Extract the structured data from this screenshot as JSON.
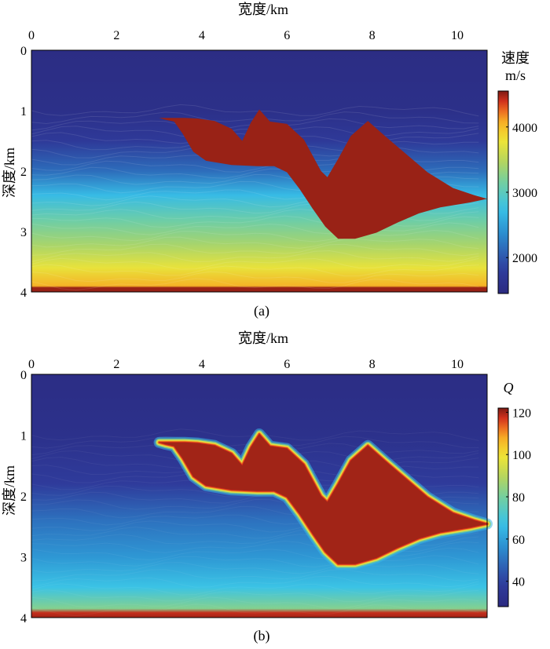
{
  "chart_data": [
    {
      "type": "heatmap",
      "panel_label": "(a)",
      "title": "宽度/km",
      "xlabel": "宽度/km",
      "ylabel": "深度/km",
      "xlim": [
        0,
        10.7
      ],
      "ylim": [
        0,
        4
      ],
      "x_ticks": [
        0,
        2,
        4,
        6,
        8,
        10
      ],
      "y_ticks": [
        0,
        1,
        2,
        3,
        4
      ],
      "colorbar": {
        "label_line1": "速度",
        "label_line2": "m/s",
        "range": [
          1450,
          4550
        ],
        "ticks": [
          2000,
          3000,
          4000
        ]
      },
      "layers": [
        {
          "depth": 0.0,
          "value": 1500
        },
        {
          "depth": 1.0,
          "value": 1560
        },
        {
          "depth": 1.5,
          "value": 1750
        },
        {
          "depth": 2.0,
          "value": 2150
        },
        {
          "depth": 2.4,
          "value": 2700
        },
        {
          "depth": 2.8,
          "value": 3100
        },
        {
          "depth": 3.2,
          "value": 3400
        },
        {
          "depth": 3.6,
          "value": 3750
        },
        {
          "depth": 3.9,
          "value": 4050
        },
        {
          "depth": 3.93,
          "value": 4500
        },
        {
          "depth": 4.0,
          "value": 4500
        }
      ],
      "salt_body": {
        "value": 4500,
        "outline": [
          [
            3.0,
            1.12
          ],
          [
            3.3,
            1.12
          ],
          [
            3.6,
            1.12
          ],
          [
            3.9,
            1.13
          ],
          [
            4.3,
            1.17
          ],
          [
            4.7,
            1.3
          ],
          [
            4.95,
            1.5
          ],
          [
            5.15,
            1.2
          ],
          [
            5.35,
            0.98
          ],
          [
            5.6,
            1.18
          ],
          [
            6.0,
            1.22
          ],
          [
            6.4,
            1.48
          ],
          [
            6.8,
            2.0
          ],
          [
            6.95,
            2.1
          ],
          [
            7.2,
            1.8
          ],
          [
            7.5,
            1.42
          ],
          [
            7.9,
            1.17
          ],
          [
            8.3,
            1.42
          ],
          [
            8.8,
            1.72
          ],
          [
            9.3,
            2.02
          ],
          [
            9.9,
            2.28
          ],
          [
            10.4,
            2.4
          ],
          [
            10.7,
            2.46
          ],
          [
            10.3,
            2.52
          ],
          [
            9.6,
            2.6
          ],
          [
            9.1,
            2.7
          ],
          [
            8.6,
            2.85
          ],
          [
            8.1,
            3.02
          ],
          [
            7.6,
            3.12
          ],
          [
            7.2,
            3.12
          ],
          [
            6.9,
            2.92
          ],
          [
            6.6,
            2.62
          ],
          [
            6.3,
            2.3
          ],
          [
            6.0,
            2.02
          ],
          [
            5.7,
            1.92
          ],
          [
            5.3,
            1.92
          ],
          [
            4.7,
            1.9
          ],
          [
            4.1,
            1.83
          ],
          [
            3.8,
            1.68
          ],
          [
            3.55,
            1.38
          ],
          [
            3.35,
            1.18
          ],
          [
            3.15,
            1.15
          ]
        ]
      }
    },
    {
      "type": "heatmap",
      "panel_label": "(b)",
      "title": "宽度/km",
      "xlabel": "宽度/km",
      "ylabel": "深度/km",
      "xlim": [
        0,
        10.7
      ],
      "ylim": [
        0,
        4
      ],
      "x_ticks": [
        0,
        2,
        4,
        6,
        8,
        10
      ],
      "y_ticks": [
        0,
        1,
        2,
        3,
        4
      ],
      "colorbar": {
        "label_line1": "Q",
        "label_line2": "",
        "range": [
          28,
          122
        ],
        "ticks": [
          40,
          60,
          80,
          100,
          120
        ]
      },
      "layers": [
        {
          "depth": 0.0,
          "value": 30
        },
        {
          "depth": 1.0,
          "value": 32
        },
        {
          "depth": 1.8,
          "value": 38
        },
        {
          "depth": 2.4,
          "value": 50
        },
        {
          "depth": 3.0,
          "value": 58
        },
        {
          "depth": 3.5,
          "value": 68
        },
        {
          "depth": 3.85,
          "value": 82
        },
        {
          "depth": 3.92,
          "value": 118
        },
        {
          "depth": 4.0,
          "value": 120
        }
      ],
      "salt_body": {
        "value": 120,
        "outline": [
          [
            3.0,
            1.12
          ],
          [
            3.3,
            1.12
          ],
          [
            3.6,
            1.12
          ],
          [
            3.9,
            1.13
          ],
          [
            4.3,
            1.17
          ],
          [
            4.7,
            1.3
          ],
          [
            4.95,
            1.5
          ],
          [
            5.15,
            1.2
          ],
          [
            5.35,
            0.98
          ],
          [
            5.6,
            1.18
          ],
          [
            6.0,
            1.22
          ],
          [
            6.4,
            1.48
          ],
          [
            6.8,
            2.0
          ],
          [
            6.95,
            2.1
          ],
          [
            7.2,
            1.8
          ],
          [
            7.5,
            1.42
          ],
          [
            7.9,
            1.17
          ],
          [
            8.3,
            1.42
          ],
          [
            8.8,
            1.72
          ],
          [
            9.3,
            2.02
          ],
          [
            9.9,
            2.28
          ],
          [
            10.4,
            2.4
          ],
          [
            10.7,
            2.46
          ],
          [
            10.3,
            2.52
          ],
          [
            9.6,
            2.6
          ],
          [
            9.1,
            2.7
          ],
          [
            8.6,
            2.85
          ],
          [
            8.1,
            3.02
          ],
          [
            7.6,
            3.12
          ],
          [
            7.2,
            3.12
          ],
          [
            6.9,
            2.92
          ],
          [
            6.6,
            2.62
          ],
          [
            6.3,
            2.3
          ],
          [
            6.0,
            2.02
          ],
          [
            5.7,
            1.92
          ],
          [
            5.3,
            1.92
          ],
          [
            4.7,
            1.9
          ],
          [
            4.1,
            1.83
          ],
          [
            3.8,
            1.68
          ],
          [
            3.55,
            1.38
          ],
          [
            3.35,
            1.18
          ],
          [
            3.15,
            1.15
          ]
        ]
      }
    }
  ]
}
